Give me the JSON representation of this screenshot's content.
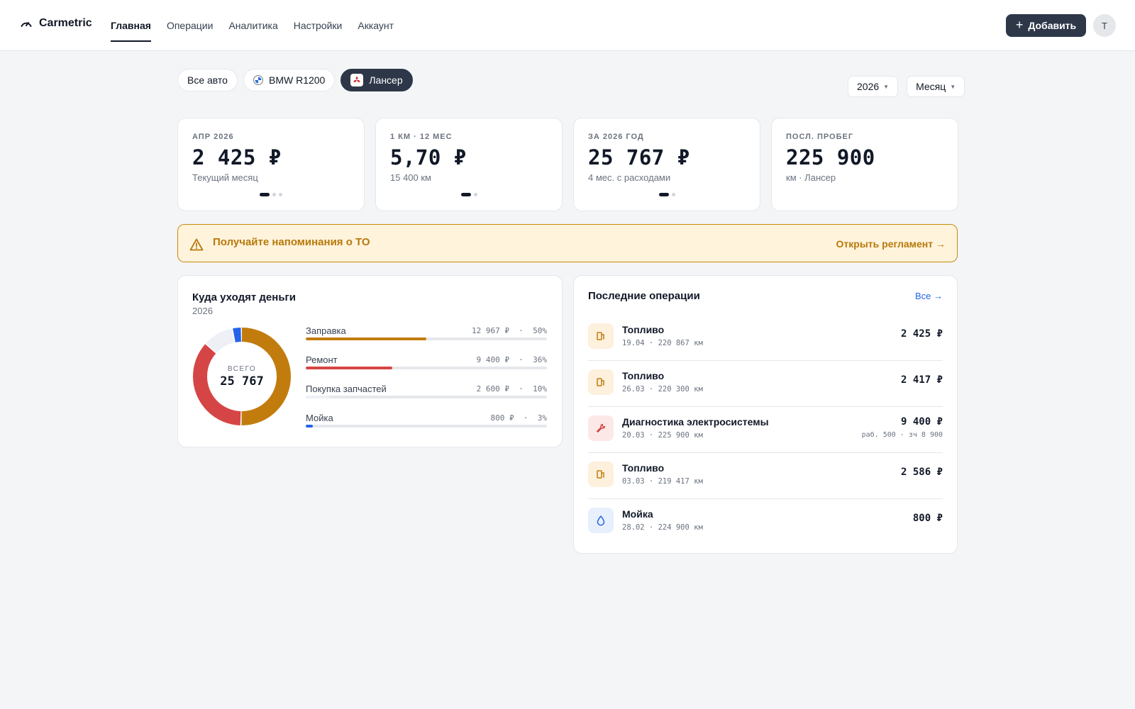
{
  "app": {
    "name": "Carmetric"
  },
  "nav": [
    {
      "label": "Главная",
      "active": true
    },
    {
      "label": "Операции",
      "active": false
    },
    {
      "label": "Аналитика",
      "active": false
    },
    {
      "label": "Настройки",
      "active": false
    },
    {
      "label": "Аккаунт",
      "active": false
    }
  ],
  "header": {
    "add_label": "Добавить",
    "avatar_letter": "T"
  },
  "vehicles": [
    {
      "label": "Все авто",
      "active": false
    },
    {
      "label": "BMW R1200",
      "active": false,
      "icon": "bmw-logo-icon"
    },
    {
      "label": "Лансер",
      "active": true,
      "icon": "mitsubishi-logo-icon"
    }
  ],
  "filters": {
    "year": "2026",
    "period": "Месяц"
  },
  "kpis": [
    {
      "label": "АПР 2026",
      "value": "2 425 ₽",
      "sub": "Текущий месяц",
      "dots": 3
    },
    {
      "label": "1 КМ · 12 МЕС",
      "value": "5,70 ₽",
      "sub": "15 400 км",
      "dots": 2
    },
    {
      "label": "ЗА 2026 ГОД",
      "value": "25 767 ₽",
      "sub": "4 мес. с расходами",
      "dots": 2
    },
    {
      "label": "ПОСЛ. ПРОБЕГ",
      "value": "225 900",
      "sub": "км · Лансер",
      "dots": 0
    }
  ],
  "alert": {
    "text": "Получайте напоминания о ТО",
    "link": "Открыть регламент →",
    "color": "#b7790a"
  },
  "spending": {
    "title": "Куда уходят деньги",
    "year": "2026",
    "total_label": "ВСЕГО",
    "total_value": "25 767",
    "categories": [
      {
        "name": "Заправка",
        "amount": "12 967 ₽",
        "percent": "50%",
        "share": 0.5,
        "color": "#c27c0e"
      },
      {
        "name": "Ремонт",
        "amount": "9 400 ₽",
        "percent": "36%",
        "share": 0.36,
        "color": "#d64545"
      },
      {
        "name": "Покупка запчастей",
        "amount": "2 600 ₽",
        "percent": "10%",
        "share": 0.1,
        "color": "#eef0f6"
      },
      {
        "name": "Мойка",
        "amount": "800 ₽",
        "percent": "3%",
        "share": 0.03,
        "color": "#2563eb"
      }
    ]
  },
  "operations": {
    "title": "Последние операции",
    "all_link": "Все →",
    "items": [
      {
        "title": "Топливо",
        "meta": "19.04 · 220 867 км",
        "amount": "2 425 ₽",
        "detail": "",
        "type": "fuel"
      },
      {
        "title": "Топливо",
        "meta": "26.03 · 220 300 км",
        "amount": "2 417 ₽",
        "detail": "",
        "type": "fuel"
      },
      {
        "title": "Диагностика электросистемы",
        "meta": "20.03 · 225 900 км",
        "amount": "9 400 ₽",
        "detail": "раб. 500 · зч 8 900",
        "type": "repair"
      },
      {
        "title": "Топливо",
        "meta": "03.03 · 219 417 км",
        "amount": "2 586 ₽",
        "detail": "",
        "type": "fuel"
      },
      {
        "title": "Мойка",
        "meta": "28.02 · 224 900 км",
        "amount": "800 ₽",
        "detail": "",
        "type": "wash"
      }
    ]
  }
}
